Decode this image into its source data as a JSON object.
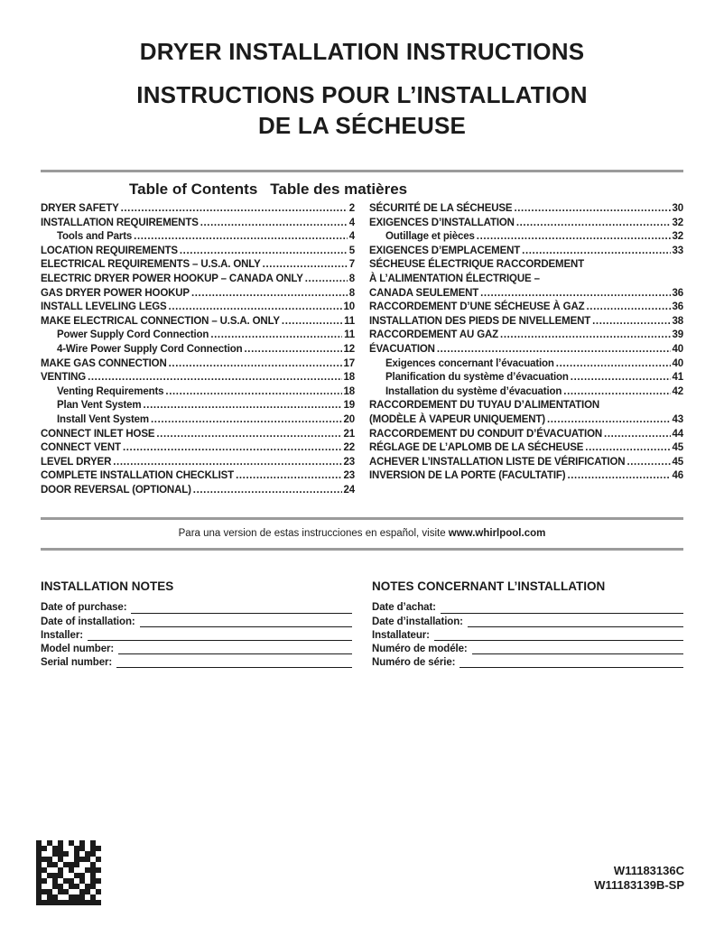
{
  "page": {
    "title_en": "DRYER INSTALLATION INSTRUCTIONS",
    "title_fr_line1": "INSTRUCTIONS POUR L’INSTALLATION",
    "title_fr_line2": "DE LA SÉCHEUSE"
  },
  "toc": {
    "heading_en": "Table of Contents",
    "heading_fr": "Table des matières",
    "left": [
      {
        "label": "DRYER SAFETY",
        "page": "2"
      },
      {
        "label": "INSTALLATION REQUIREMENTS",
        "page": "4"
      },
      {
        "label": "Tools and Parts",
        "page": "4",
        "indent": true
      },
      {
        "label": "LOCATION REQUIREMENTS",
        "page": "5"
      },
      {
        "label": "ELECTRICAL REQUIREMENTS – U.S.A. ONLY",
        "page": "7"
      },
      {
        "label": "ELECTRIC DRYER POWER HOOKUP – CANADA ONLY",
        "page": "8"
      },
      {
        "label": "GAS DRYER POWER HOOKUP",
        "page": "8"
      },
      {
        "label": "INSTALL LEVELING LEGS",
        "page": "10"
      },
      {
        "label": "MAKE ELECTRICAL CONNECTION – U.S.A. ONLY",
        "page": "11"
      },
      {
        "label": "Power Supply Cord Connection",
        "page": "11",
        "indent": true
      },
      {
        "label": "4-Wire Power Supply Cord Connection",
        "page": "12",
        "indent": true
      },
      {
        "label": "MAKE GAS CONNECTION",
        "page": "17"
      },
      {
        "label": "VENTING",
        "page": "18"
      },
      {
        "label": "Venting Requirements",
        "page": "18",
        "indent": true
      },
      {
        "label": "Plan Vent System",
        "page": "19",
        "indent": true
      },
      {
        "label": "Install Vent System",
        "page": "20",
        "indent": true
      },
      {
        "label": "CONNECT INLET HOSE",
        "page": "21"
      },
      {
        "label": "CONNECT VENT",
        "page": "22"
      },
      {
        "label": "LEVEL DRYER",
        "page": "23"
      },
      {
        "label": "COMPLETE INSTALLATION CHECKLIST",
        "page": "23"
      },
      {
        "label": "DOOR REVERSAL (OPTIONAL)",
        "page": "24"
      }
    ],
    "right": [
      {
        "label": "SÉCURITÉ DE LA SÉCHEUSE",
        "page": "30"
      },
      {
        "label": "EXIGENCES D’INSTALLATION",
        "page": "32"
      },
      {
        "label": "Outillage et pièces",
        "page": "32",
        "indent": true
      },
      {
        "label": "EXIGENCES D’EMPLACEMENT",
        "page": "33"
      },
      {
        "label": "SÉCHEUSE ÉLECTRIQUE RACCORDEMENT",
        "page": ""
      },
      {
        "label": "À L’ALIMENTATION ÉLECTRIQUE –",
        "page": ""
      },
      {
        "label": "CANADA SEULEMENT",
        "page": "36"
      },
      {
        "label": "RACCORDEMENT D’UNE SÉCHEUSE À GAZ",
        "page": "36"
      },
      {
        "label": "INSTALLATION DES PIEDS DE NIVELLEMENT",
        "page": "38"
      },
      {
        "label": "RACCORDEMENT AU GAZ",
        "page": "39"
      },
      {
        "label": "ÉVACUATION",
        "page": "40"
      },
      {
        "label": "Exigences concernant l’évacuation",
        "page": "40",
        "indent": true
      },
      {
        "label": "Planification du système d’évacuation",
        "page": "41",
        "indent": true
      },
      {
        "label": "Installation du système d’évacuation",
        "page": "42",
        "indent": true
      },
      {
        "label": "RACCORDEMENT DU TUYAU D’ALIMENTATION",
        "page": ""
      },
      {
        "label": "(MODÈLE À VAPEUR UNIQUEMENT)",
        "page": "43"
      },
      {
        "label": "RACCORDEMENT DU CONDUIT D’ÉVACUATION",
        "page": "44"
      },
      {
        "label": "RÉGLAGE DE L’APLOMB DE LA SÉCHEUSE",
        "page": "45"
      },
      {
        "label": "ACHEVER L’INSTALLATION LISTE DE VÉRIFICATION",
        "page": "45"
      },
      {
        "label": "INVERSION DE LA PORTE (FACULTATIF)",
        "page": "46"
      }
    ]
  },
  "spanish_note": {
    "text": "Para una version de estas instrucciones en español, visite ",
    "link": "www.whirlpool.com"
  },
  "notes": {
    "en": {
      "heading": "INSTALLATION NOTES",
      "fields": [
        {
          "label": "Date of purchase:"
        },
        {
          "label": "Date of installation:"
        },
        {
          "label": "Installer:"
        },
        {
          "label": "Model number:"
        },
        {
          "label": "Serial number:"
        }
      ]
    },
    "fr": {
      "heading": "NOTES CONCERNANT L’INSTALLATION",
      "fields": [
        {
          "label": "Date d’achat:"
        },
        {
          "label": "Date d’installation:"
        },
        {
          "label": "Installateur:"
        },
        {
          "label": "Numéro de modéle:"
        },
        {
          "label": "Numéro de série:"
        }
      ]
    }
  },
  "footer": {
    "part_number_1": "W11183136C",
    "part_number_2": "W11183139B-SP"
  },
  "barcode": {
    "type": "data-matrix",
    "matrix": [
      "101010101010",
      "110110011011",
      "100111010110",
      "111010011101",
      "101101110010",
      "110010100111",
      "101110011010",
      "110101101011",
      "100110110110",
      "111011001101",
      "101100111010",
      "111111111111"
    ]
  },
  "colors": {
    "rule_gray": "#9b9b9b",
    "text": "#1b1b1b",
    "background": "#ffffff"
  }
}
